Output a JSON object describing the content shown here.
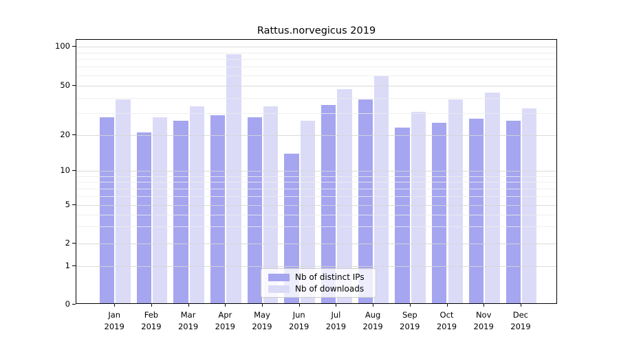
{
  "title": "Rattus.norvegicus 2019",
  "colors": {
    "distinct_ips": "#a5a5f0",
    "downloads": "#dbdbf8",
    "grid_major": "rgba(214,214,214,0.9)",
    "grid_minor": "rgba(236,236,236,0.85)",
    "axis": "#000000",
    "background": "#ffffff",
    "legend_border": "#cccccc",
    "legend_background": "rgba(255,255,255,0.8)"
  },
  "chart_data": {
    "type": "bar",
    "title": "Rattus.norvegicus 2019",
    "categories": [
      "Jan 2019",
      "Feb 2019",
      "Mar 2019",
      "Apr 2019",
      "May 2019",
      "Jun 2019",
      "Jul 2019",
      "Aug 2019",
      "Sep 2019",
      "Oct 2019",
      "Nov 2019",
      "Dec 2019"
    ],
    "series": [
      {
        "name": "Nb of distinct IPs",
        "values": [
          28,
          21,
          26,
          29,
          28,
          14,
          35,
          39,
          23,
          25,
          27,
          26
        ]
      },
      {
        "name": "Nb of downloads",
        "values": [
          39,
          28,
          34,
          88,
          34,
          26,
          47,
          59,
          31,
          39,
          44,
          33
        ]
      }
    ],
    "xlabel": "",
    "ylabel": "",
    "yscale": "symlog",
    "yticks": [
      0,
      1,
      2,
      5,
      10,
      20,
      50,
      100
    ],
    "yminorticks": [
      3,
      4,
      6,
      7,
      8,
      9,
      30,
      40,
      60,
      70,
      80,
      90
    ],
    "ylim": [
      0,
      113
    ],
    "grid": true,
    "legend_position": "lower center"
  },
  "legend": {
    "items": [
      {
        "label": "Nb of distinct IPs",
        "color_key": "distinct_ips"
      },
      {
        "label": "Nb of downloads",
        "color_key": "downloads"
      }
    ]
  }
}
